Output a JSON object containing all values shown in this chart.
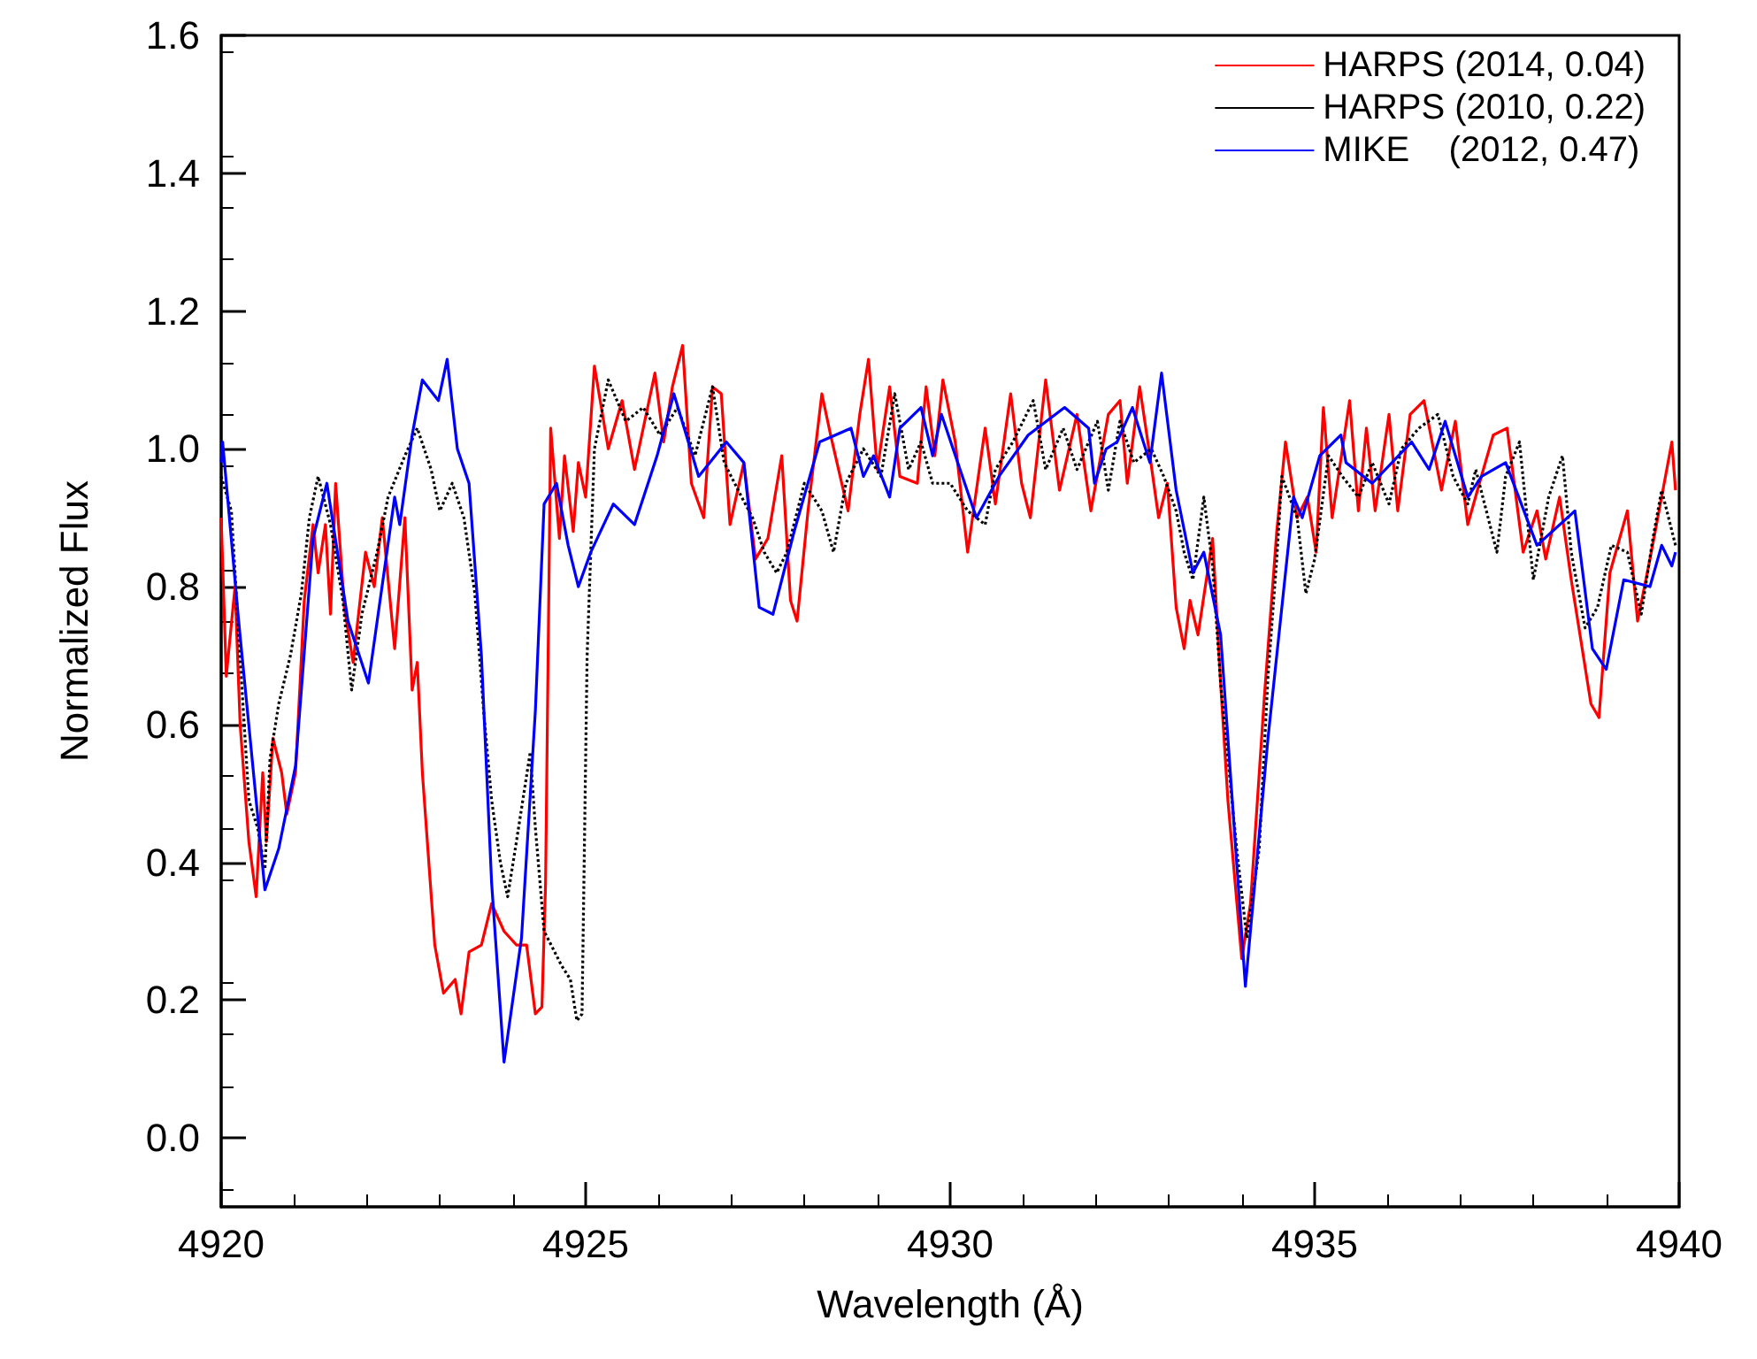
{
  "chart_data": {
    "type": "line",
    "xlabel": "Wavelength (Å)",
    "ylabel": "Normalized Flux",
    "xlim": [
      4920,
      4940
    ],
    "xticks": [
      4920,
      4925,
      4930,
      4935,
      4940
    ],
    "ylim": [
      -0.1,
      1.6
    ],
    "yticks": [
      {
        "value": 0,
        "label": "0.0"
      },
      {
        "value": 0.2,
        "label": "0.2"
      },
      {
        "value": 0.4,
        "label": "0.4"
      },
      {
        "value": 0.6,
        "label": "0.6"
      },
      {
        "value": 0.8,
        "label": "0.8"
      },
      {
        "value": 1,
        "label": "1.0"
      },
      {
        "value": 1.2,
        "label": "1.2"
      },
      {
        "value": 1.4,
        "label": "1.4"
      },
      {
        "value": 1.6,
        "label": "1.6"
      }
    ],
    "grid": false,
    "legend": "top right",
    "marker": "none",
    "series": [
      {
        "name": "HARPS (2014, 0.04)",
        "color": "#ff0000",
        "line_style": "solid",
        "x": [
          4920.0,
          4920.07,
          4920.19,
          4920.26,
          4920.38,
          4920.48,
          4920.57,
          4920.62,
          4920.71,
          4920.83,
          4920.9,
          4921.02,
          4921.14,
          4921.26,
          4921.33,
          4921.43,
          4921.5,
          4921.57,
          4921.69,
          4921.81,
          4921.98,
          4922.1,
          4922.21,
          4922.38,
          4922.52,
          4922.62,
          4922.69,
          4922.76,
          4922.93,
          4923.05,
          4923.21,
          4923.29,
          4923.4,
          4923.57,
          4923.71,
          4923.88,
          4924.05,
          4924.19,
          4924.31,
          4924.4,
          4924.45,
          4924.52,
          4924.64,
          4924.71,
          4924.83,
          4924.9,
          4925.0,
          4925.12,
          4925.31,
          4925.5,
          4925.67,
          4925.95,
          4926.07,
          4926.19,
          4926.33,
          4926.45,
          4926.62,
          4926.74,
          4926.86,
          4926.98,
          4927.17,
          4927.33,
          4927.5,
          4927.69,
          4927.81,
          4927.9,
          4928.05,
          4928.24,
          4928.36,
          4928.6,
          4928.76,
          4928.88,
          4929.0,
          4929.17,
          4929.31,
          4929.55,
          4929.67,
          4929.79,
          4929.9,
          4930.07,
          4930.24,
          4930.48,
          4930.62,
          4930.83,
          4930.98,
          4931.1,
          4931.31,
          4931.5,
          4931.74,
          4931.93,
          4932.17,
          4932.33,
          4932.43,
          4932.6,
          4932.74,
          4932.86,
          4932.98,
          4933.1,
          4933.21,
          4933.29,
          4933.4,
          4933.6,
          4933.71,
          4933.81,
          4934.0,
          4934.12,
          4934.31,
          4934.48,
          4934.6,
          4934.76,
          4934.9,
          4935.02,
          4935.12,
          4935.24,
          4935.48,
          4935.6,
          4935.71,
          4935.83,
          4936.02,
          4936.14,
          4936.31,
          4936.5,
          4936.74,
          4936.93,
          4937.1,
          4937.26,
          4937.45,
          4937.64,
          4937.86,
          4938.05,
          4938.17,
          4938.36,
          4938.52,
          4938.64,
          4938.79,
          4938.9,
          4939.05,
          4939.29,
          4939.43,
          4939.6,
          4939.76,
          4939.9,
          4939.95
        ],
        "values": [
          0.9,
          0.67,
          0.8,
          0.6,
          0.43,
          0.35,
          0.53,
          0.43,
          0.58,
          0.53,
          0.47,
          0.53,
          0.78,
          0.89,
          0.82,
          0.89,
          0.76,
          0.95,
          0.77,
          0.69,
          0.85,
          0.8,
          0.9,
          0.71,
          0.9,
          0.65,
          0.69,
          0.53,
          0.28,
          0.21,
          0.23,
          0.18,
          0.27,
          0.28,
          0.34,
          0.3,
          0.28,
          0.28,
          0.18,
          0.19,
          0.37,
          1.03,
          0.87,
          0.99,
          0.88,
          0.98,
          0.93,
          1.12,
          1.0,
          1.07,
          0.97,
          1.11,
          1.01,
          1.09,
          1.15,
          0.95,
          0.9,
          1.09,
          1.08,
          0.89,
          0.98,
          0.84,
          0.87,
          0.99,
          0.78,
          0.75,
          0.91,
          1.08,
          1.02,
          0.91,
          1.05,
          1.13,
          0.97,
          1.09,
          0.96,
          0.95,
          1.09,
          0.99,
          1.1,
          1.01,
          0.85,
          1.03,
          0.92,
          1.08,
          0.95,
          0.9,
          1.1,
          0.94,
          1.05,
          0.91,
          1.05,
          1.07,
          0.95,
          1.09,
          0.99,
          0.9,
          0.95,
          0.77,
          0.71,
          0.78,
          0.73,
          0.87,
          0.66,
          0.49,
          0.26,
          0.34,
          0.64,
          0.88,
          1.01,
          0.9,
          0.93,
          0.85,
          1.06,
          0.9,
          1.07,
          0.91,
          1.03,
          0.91,
          1.05,
          0.91,
          1.05,
          1.07,
          0.94,
          1.04,
          0.89,
          0.95,
          1.02,
          1.03,
          0.85,
          0.91,
          0.84,
          0.93,
          0.81,
          0.73,
          0.63,
          0.61,
          0.82,
          0.91,
          0.75,
          0.84,
          0.93,
          1.01,
          0.94
        ]
      },
      {
        "name": "HARPS (2010, 0.22)",
        "color": "#000000",
        "line_style": "dotted",
        "x": [
          4920.0,
          4920.14,
          4920.24,
          4920.38,
          4920.5,
          4920.6,
          4920.67,
          4920.79,
          4920.95,
          4921.1,
          4921.21,
          4921.33,
          4921.5,
          4921.67,
          4921.79,
          4921.93,
          4922.14,
          4922.29,
          4922.52,
          4922.69,
          4922.88,
          4923.0,
          4923.17,
          4923.33,
          4923.48,
          4923.6,
          4923.71,
          4923.83,
          4923.93,
          4924.05,
          4924.24,
          4924.31,
          4924.43,
          4924.67,
          4924.79,
          4924.88,
          4924.95,
          4925.02,
          4925.12,
          4925.31,
          4925.55,
          4925.79,
          4926.02,
          4926.26,
          4926.5,
          4926.74,
          4926.9,
          4927.14,
          4927.29,
          4927.45,
          4927.62,
          4927.76,
          4928.0,
          4928.24,
          4928.4,
          4928.57,
          4928.81,
          4929.05,
          4929.24,
          4929.43,
          4929.6,
          4929.76,
          4930.0,
          4930.24,
          4930.48,
          4930.62,
          4930.86,
          4931.14,
          4931.31,
          4931.55,
          4931.74,
          4932.02,
          4932.17,
          4932.33,
          4932.52,
          4932.76,
          4932.93,
          4933.1,
          4933.21,
          4933.33,
          4933.48,
          4933.6,
          4933.71,
          4933.93,
          4934.07,
          4934.24,
          4934.36,
          4934.48,
          4934.55,
          4934.76,
          4934.88,
          4935.0,
          4935.19,
          4935.38,
          4935.6,
          4935.79,
          4936.02,
          4936.19,
          4936.43,
          4936.69,
          4936.9,
          4937.1,
          4937.21,
          4937.5,
          4937.62,
          4937.81,
          4938.0,
          4938.21,
          4938.4,
          4938.52,
          4938.71,
          4938.88,
          4939.07,
          4939.29,
          4939.48,
          4939.64,
          4939.76,
          4939.95
        ],
        "values": [
          0.96,
          0.91,
          0.73,
          0.49,
          0.45,
          0.39,
          0.55,
          0.63,
          0.7,
          0.79,
          0.9,
          0.96,
          0.89,
          0.78,
          0.65,
          0.76,
          0.85,
          0.93,
          0.99,
          1.03,
          0.97,
          0.91,
          0.95,
          0.9,
          0.79,
          0.62,
          0.49,
          0.4,
          0.35,
          0.43,
          0.56,
          0.45,
          0.3,
          0.25,
          0.23,
          0.17,
          0.18,
          0.7,
          1.0,
          1.1,
          1.04,
          1.06,
          1.02,
          1.06,
          0.99,
          1.09,
          0.98,
          0.93,
          0.9,
          0.85,
          0.82,
          0.85,
          0.95,
          0.91,
          0.85,
          0.95,
          1.0,
          0.96,
          1.08,
          0.97,
          1.01,
          0.95,
          0.95,
          0.91,
          0.89,
          0.97,
          1.01,
          1.07,
          0.97,
          1.03,
          0.97,
          1.04,
          0.94,
          1.04,
          0.98,
          1.0,
          0.96,
          0.91,
          0.85,
          0.81,
          0.93,
          0.83,
          0.66,
          0.42,
          0.29,
          0.42,
          0.67,
          0.84,
          0.96,
          0.9,
          0.79,
          0.84,
          0.99,
          0.96,
          0.93,
          0.98,
          0.92,
          1.0,
          1.03,
          1.05,
          0.96,
          0.92,
          0.97,
          0.85,
          0.96,
          1.01,
          0.81,
          0.93,
          0.99,
          0.85,
          0.74,
          0.77,
          0.86,
          0.85,
          0.76,
          0.87,
          0.94,
          0.86
        ]
      },
      {
        "name": "MIKE    (2012, 0.47)",
        "color": "#0000ff",
        "line_style": "solid",
        "x": [
          4920.0,
          4920.02,
          4920.24,
          4920.6,
          4920.79,
          4921.02,
          4921.26,
          4921.45,
          4921.74,
          4922.02,
          4922.38,
          4922.45,
          4922.62,
          4922.76,
          4922.98,
          4923.1,
          4923.24,
          4923.4,
          4923.57,
          4923.71,
          4923.88,
          4924.12,
          4924.31,
          4924.43,
          4924.6,
          4924.76,
          4924.9,
          4925.07,
          4925.38,
          4925.67,
          4925.98,
          4926.21,
          4926.55,
          4926.93,
          4927.17,
          4927.38,
          4927.57,
          4927.86,
          4928.21,
          4928.64,
          4928.81,
          4928.95,
          4929.17,
          4929.31,
          4929.6,
          4929.76,
          4929.88,
          4930.36,
          4930.67,
          4931.07,
          4931.57,
          4931.9,
          4931.98,
          4932.14,
          4932.29,
          4932.5,
          4932.74,
          4932.9,
          4933.1,
          4933.33,
          4933.48,
          4933.71,
          4934.05,
          4934.36,
          4934.71,
          4934.83,
          4935.07,
          4935.36,
          4935.43,
          4935.79,
          4936.33,
          4936.57,
          4936.79,
          4937.1,
          4937.29,
          4937.62,
          4938.05,
          4938.57,
          4938.81,
          4939.0,
          4939.24,
          4939.6,
          4939.76,
          4939.9,
          4939.95
        ],
        "values": [
          0.98,
          1.01,
          0.75,
          0.36,
          0.42,
          0.54,
          0.87,
          0.95,
          0.75,
          0.66,
          0.93,
          0.89,
          1.02,
          1.1,
          1.07,
          1.13,
          1.0,
          0.95,
          0.7,
          0.37,
          0.11,
          0.29,
          0.62,
          0.92,
          0.95,
          0.86,
          0.8,
          0.85,
          0.92,
          0.89,
          0.99,
          1.08,
          0.96,
          1.01,
          0.98,
          0.77,
          0.76,
          0.88,
          1.01,
          1.03,
          0.96,
          0.99,
          0.93,
          1.03,
          1.06,
          0.99,
          1.05,
          0.9,
          0.96,
          1.02,
          1.06,
          1.03,
          0.95,
          1.0,
          1.01,
          1.06,
          0.98,
          1.11,
          0.94,
          0.82,
          0.85,
          0.73,
          0.22,
          0.58,
          0.93,
          0.9,
          0.99,
          1.02,
          0.98,
          0.95,
          1.01,
          0.97,
          1.04,
          0.93,
          0.96,
          0.98,
          0.86,
          0.91,
          0.71,
          0.68,
          0.81,
          0.8,
          0.86,
          0.83,
          0.85
        ]
      }
    ]
  }
}
